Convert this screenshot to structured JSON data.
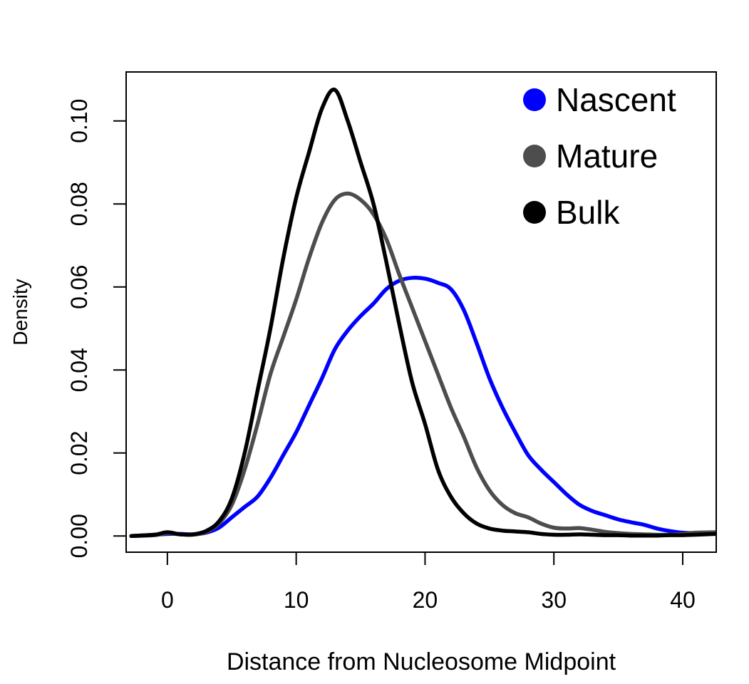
{
  "chart_data": {
    "type": "line",
    "title": "",
    "xlabel": "Distance from Nucleosome Midpoint",
    "ylabel": "Density",
    "xlim": [
      -3.2,
      42.6
    ],
    "ylim": [
      -0.0039,
      0.1118
    ],
    "x_ticks": [
      0,
      10,
      20,
      30,
      40
    ],
    "x_tick_labels": [
      "0",
      "10",
      "20",
      "30",
      "40"
    ],
    "y_ticks": [
      0.0,
      0.02,
      0.04,
      0.06,
      0.08,
      0.1
    ],
    "y_tick_labels": [
      "0.00",
      "0.02",
      "0.04",
      "0.06",
      "0.08",
      "0.10"
    ],
    "grid": false,
    "legend_position": "top-right",
    "legend": [
      {
        "label": "Nascent",
        "color": "#0000ff"
      },
      {
        "label": "Mature",
        "color": "#4d4d4d"
      },
      {
        "label": "Bulk",
        "color": "#000000"
      }
    ],
    "series": [
      {
        "name": "Nascent",
        "color": "#0000ff",
        "points": [
          [
            -2.8,
            0.0
          ],
          [
            -1,
            0.0003
          ],
          [
            0,
            0.0005
          ],
          [
            1,
            0.0005
          ],
          [
            2,
            0.0004
          ],
          [
            3,
            0.0008
          ],
          [
            4,
            0.002
          ],
          [
            5,
            0.0045
          ],
          [
            6,
            0.007
          ],
          [
            7,
            0.0095
          ],
          [
            8,
            0.014
          ],
          [
            9,
            0.0195
          ],
          [
            10,
            0.025
          ],
          [
            11,
            0.0315
          ],
          [
            12,
            0.038
          ],
          [
            13,
            0.045
          ],
          [
            14,
            0.0495
          ],
          [
            15,
            0.053
          ],
          [
            16,
            0.056
          ],
          [
            17,
            0.0595
          ],
          [
            18,
            0.0615
          ],
          [
            19,
            0.0622
          ],
          [
            20,
            0.062
          ],
          [
            21,
            0.061
          ],
          [
            22,
            0.0595
          ],
          [
            23,
            0.0545
          ],
          [
            24,
            0.0465
          ],
          [
            25,
            0.038
          ],
          [
            26,
            0.031
          ],
          [
            27,
            0.025
          ],
          [
            28,
            0.0195
          ],
          [
            29,
            0.016
          ],
          [
            30,
            0.013
          ],
          [
            31,
            0.01
          ],
          [
            32,
            0.0075
          ],
          [
            33,
            0.006
          ],
          [
            34,
            0.005
          ],
          [
            35,
            0.004
          ],
          [
            36,
            0.0033
          ],
          [
            37,
            0.0027
          ],
          [
            38,
            0.0018
          ],
          [
            39,
            0.0012
          ],
          [
            40,
            0.0008
          ],
          [
            41,
            0.0007
          ],
          [
            42.5,
            0.0007
          ]
        ]
      },
      {
        "name": "Mature",
        "color": "#4d4d4d",
        "points": [
          [
            -2.8,
            0.0
          ],
          [
            -1,
            0.0002
          ],
          [
            0,
            0.0007
          ],
          [
            1,
            0.0004
          ],
          [
            2,
            0.0003
          ],
          [
            3,
            0.001
          ],
          [
            4,
            0.003
          ],
          [
            5,
            0.0075
          ],
          [
            6,
            0.016
          ],
          [
            7,
            0.027
          ],
          [
            8,
            0.039
          ],
          [
            9,
            0.048
          ],
          [
            10,
            0.057
          ],
          [
            11,
            0.067
          ],
          [
            12,
            0.0755
          ],
          [
            13,
            0.081
          ],
          [
            14,
            0.0825
          ],
          [
            15,
            0.081
          ],
          [
            16,
            0.0775
          ],
          [
            17,
            0.0715
          ],
          [
            18,
            0.063
          ],
          [
            19,
            0.055
          ],
          [
            20,
            0.047
          ],
          [
            21,
            0.039
          ],
          [
            22,
            0.031
          ],
          [
            23,
            0.024
          ],
          [
            24,
            0.0165
          ],
          [
            25,
            0.011
          ],
          [
            26,
            0.0075
          ],
          [
            27,
            0.0055
          ],
          [
            28,
            0.0045
          ],
          [
            29,
            0.003
          ],
          [
            30,
            0.002
          ],
          [
            31,
            0.0018
          ],
          [
            32,
            0.0019
          ],
          [
            33,
            0.0015
          ],
          [
            34,
            0.001
          ],
          [
            35,
            0.0007
          ],
          [
            36,
            0.0005
          ],
          [
            37,
            0.0004
          ],
          [
            38,
            0.0003
          ],
          [
            39,
            0.0003
          ],
          [
            40,
            0.0005
          ],
          [
            41,
            0.0008
          ],
          [
            42.5,
            0.0009
          ]
        ]
      },
      {
        "name": "Bulk",
        "color": "#000000",
        "points": [
          [
            -2.8,
            0.0
          ],
          [
            -1,
            0.0003
          ],
          [
            0,
            0.0009
          ],
          [
            1,
            0.0004
          ],
          [
            2,
            0.0004
          ],
          [
            3,
            0.0012
          ],
          [
            4,
            0.0035
          ],
          [
            5,
            0.009
          ],
          [
            6,
            0.02
          ],
          [
            7,
            0.035
          ],
          [
            8,
            0.05
          ],
          [
            9,
            0.067
          ],
          [
            10,
            0.0815
          ],
          [
            11,
            0.0925
          ],
          [
            12,
            0.103
          ],
          [
            13,
            0.1075
          ],
          [
            14,
            0.1
          ],
          [
            15,
            0.09
          ],
          [
            16,
            0.08
          ],
          [
            17,
            0.066
          ],
          [
            18,
            0.051
          ],
          [
            19,
            0.037
          ],
          [
            20,
            0.027
          ],
          [
            21,
            0.016
          ],
          [
            22,
            0.0095
          ],
          [
            23,
            0.0055
          ],
          [
            24,
            0.003
          ],
          [
            25,
            0.0018
          ],
          [
            26,
            0.0013
          ],
          [
            27,
            0.0011
          ],
          [
            28,
            0.0009
          ],
          [
            29,
            0.0005
          ],
          [
            30,
            0.0003
          ],
          [
            31,
            0.0003
          ],
          [
            32,
            0.0004
          ],
          [
            33,
            0.0003
          ],
          [
            34,
            0.0002
          ],
          [
            35,
            0.0002
          ],
          [
            36,
            0.0001
          ],
          [
            37,
            0.0001
          ],
          [
            38,
            0.0001
          ],
          [
            39,
            0.0002
          ],
          [
            40,
            0.0002
          ],
          [
            41,
            0.0003
          ],
          [
            42.5,
            0.0005
          ]
        ]
      }
    ]
  }
}
